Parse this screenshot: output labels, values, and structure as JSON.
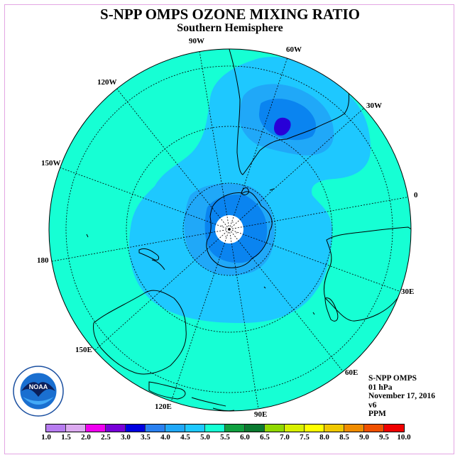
{
  "title": "S-NPP OMPS OZONE MIXING RATIO",
  "subtitle": "Southern Hemisphere",
  "longitude_labels": [
    "90W",
    "60W",
    "30W",
    "0",
    "30E",
    "60E",
    "90E",
    "120E",
    "150E",
    "180",
    "150W",
    "120W"
  ],
  "info": {
    "instrument": "S-NPP OMPS",
    "pressure": "01 hPa",
    "date": "November 17, 2016",
    "version": "v6",
    "units": "PPM"
  },
  "logo": {
    "text": "NOAA",
    "icon": "noaa-logo-icon"
  },
  "colorbar": {
    "ticks": [
      "1.0",
      "1.5",
      "2.0",
      "2.5",
      "3.0",
      "3.5",
      "4.0",
      "4.5",
      "5.0",
      "5.5",
      "6.0",
      "6.5",
      "7.0",
      "7.5",
      "8.0",
      "8.5",
      "9.0",
      "9.5",
      "10.0"
    ],
    "colors": [
      "#b77cf0",
      "#dcaaf0",
      "#f000f0",
      "#7800d8",
      "#0000e0",
      "#2a80f0",
      "#20a8f8",
      "#1ec8ff",
      "#16ffd4",
      "#10a040",
      "#0a7a30",
      "#90d800",
      "#d8f000",
      "#ffff00",
      "#f0c800",
      "#f08c00",
      "#f05000",
      "#f00000",
      "#8b5a3c"
    ]
  },
  "map_colors": {
    "background": "#16ffd4",
    "band_4_0": "#1ec8ff",
    "band_3_5": "#20a8f8",
    "band_3_0": "#0a84f0",
    "band_2_5": "#2800d8",
    "polar_hole": "#ffffff",
    "coast": "#000000"
  }
}
